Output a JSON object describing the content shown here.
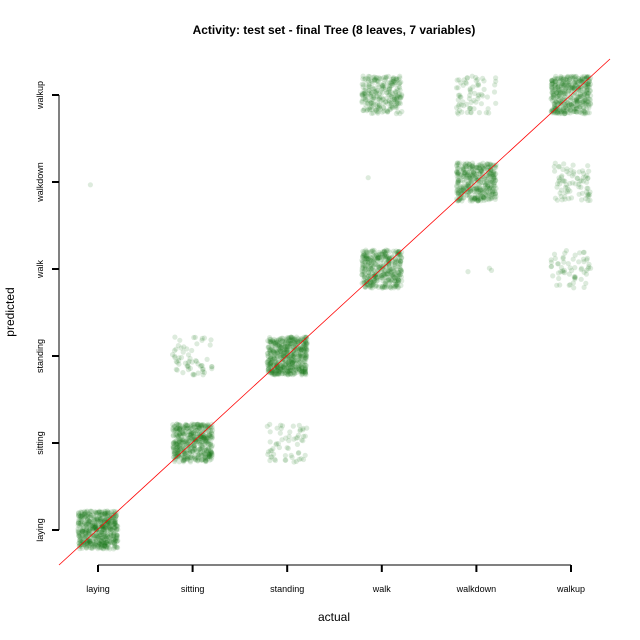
{
  "chart_data": {
    "type": "scatter",
    "title": "Activity: test set - final Tree (8 leaves, 7 variables)",
    "xlabel": "actual",
    "ylabel": "predicted",
    "categories": [
      "laying",
      "sitting",
      "standing",
      "walk",
      "walkdown",
      "walkup"
    ],
    "jitter": true,
    "reference_line": "y = x",
    "colors": {
      "points": "#1a7a1a",
      "reference_line": "#ff0000"
    },
    "cells": [
      {
        "actual": "laying",
        "predicted": "laying",
        "count": 540
      },
      {
        "actual": "laying",
        "predicted": "walkdown",
        "count": 1
      },
      {
        "actual": "sitting",
        "predicted": "sitting",
        "count": 470
      },
      {
        "actual": "sitting",
        "predicted": "standing",
        "count": 60
      },
      {
        "actual": "standing",
        "predicted": "sitting",
        "count": 60
      },
      {
        "actual": "standing",
        "predicted": "standing",
        "count": 540
      },
      {
        "actual": "walk",
        "predicted": "walk",
        "count": 400
      },
      {
        "actual": "walk",
        "predicted": "walkdown",
        "count": 1
      },
      {
        "actual": "walk",
        "predicted": "walkup",
        "count": 250
      },
      {
        "actual": "walkdown",
        "predicted": "walk",
        "count": 3
      },
      {
        "actual": "walkdown",
        "predicted": "walkdown",
        "count": 400
      },
      {
        "actual": "walkdown",
        "predicted": "walkup",
        "count": 70
      },
      {
        "actual": "walkup",
        "predicted": "walk",
        "count": 60
      },
      {
        "actual": "walkup",
        "predicted": "walkdown",
        "count": 80
      },
      {
        "actual": "walkup",
        "predicted": "walkup",
        "count": 420
      }
    ]
  }
}
